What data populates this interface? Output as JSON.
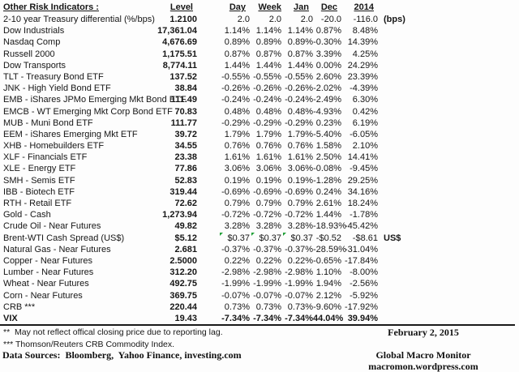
{
  "table": {
    "title": "Other Risk Indicators :",
    "columns": [
      "Level",
      "Day",
      "Week",
      "Jan",
      "Dec",
      "2014"
    ],
    "rows": [
      {
        "name": "2-10 year Treasury differential (%/bps)",
        "level": "1.2100",
        "day": "2.0",
        "week": "2.0",
        "jan": "2.0",
        "dec": "-20.0",
        "y2014": "-116.0",
        "suffix": "(bps)"
      },
      {
        "name": "Dow Industrials",
        "level": "17,361.04",
        "day": "1.14%",
        "week": "1.14%",
        "jan": "1.14%",
        "dec": "0.87%",
        "y2014": "8.48%"
      },
      {
        "name": "Nasdaq Comp",
        "level": "4,676.69",
        "day": "0.89%",
        "week": "0.89%",
        "jan": "0.89%",
        "dec": "-0.30%",
        "y2014": "14.39%"
      },
      {
        "name": "Russell 2000",
        "level": "1,175.51",
        "day": "0.87%",
        "week": "0.87%",
        "jan": "0.87%",
        "dec": "3.39%",
        "y2014": "4.25%"
      },
      {
        "name": "Dow Transports",
        "level": "8,774.11",
        "day": "1.44%",
        "week": "1.44%",
        "jan": "1.44%",
        "dec": "0.00%",
        "y2014": "24.29%"
      },
      {
        "name": "TLT - Treasury Bond ETF",
        "level": "137.52",
        "day": "-0.55%",
        "week": "-0.55%",
        "jan": "-0.55%",
        "dec": "2.60%",
        "y2014": "23.39%"
      },
      {
        "name": "JNK - High Yield Bond ETF",
        "level": "38.84",
        "day": "-0.26%",
        "week": "-0.26%",
        "jan": "-0.26%",
        "dec": "-2.02%",
        "y2014": "-4.39%"
      },
      {
        "name": "EMB - iShares JPMo Emerging Mkt Bond ETF",
        "level": "111.49",
        "day": "-0.24%",
        "week": "-0.24%",
        "jan": "-0.24%",
        "dec": "-2.49%",
        "y2014": "6.30%"
      },
      {
        "name": "EMCB - WT Emerging Mkt Corp Bond ETF",
        "level": "70.83",
        "day": "0.48%",
        "week": "0.48%",
        "jan": "0.48%",
        "dec": "-4.93%",
        "y2014": "0.42%"
      },
      {
        "name": "MUB - Muni Bond ETF",
        "level": "111.77",
        "day": "-0.29%",
        "week": "-0.29%",
        "jan": "-0.29%",
        "dec": "0.23%",
        "y2014": "6.19%"
      },
      {
        "name": "EEM - iShares Emerging Mkt ETF",
        "level": "39.72",
        "day": "1.79%",
        "week": "1.79%",
        "jan": "1.79%",
        "dec": "-5.40%",
        "y2014": "-6.05%"
      },
      {
        "name": "XHB - Homebuilders ETF",
        "level": "34.55",
        "day": "0.76%",
        "week": "0.76%",
        "jan": "0.76%",
        "dec": "1.58%",
        "y2014": "2.10%"
      },
      {
        "name": "XLF - Financials ETF",
        "level": "23.38",
        "day": "1.61%",
        "week": "1.61%",
        "jan": "1.61%",
        "dec": "2.50%",
        "y2014": "14.41%"
      },
      {
        "name": "XLE - Energy ETF",
        "level": "77.86",
        "day": "3.06%",
        "week": "3.06%",
        "jan": "3.06%",
        "dec": "-0.08%",
        "y2014": "-9.45%"
      },
      {
        "name": "SMH - Semis ETF",
        "level": "52.83",
        "day": "0.19%",
        "week": "0.19%",
        "jan": "0.19%",
        "dec": "-1.28%",
        "y2014": "29.25%"
      },
      {
        "name": "IBB - Biotech ETF",
        "level": "319.44",
        "day": "-0.69%",
        "week": "-0.69%",
        "jan": "-0.69%",
        "dec": "0.24%",
        "y2014": "34.16%"
      },
      {
        "name": "RTH - Retail ETF",
        "level": "72.62",
        "day": "0.79%",
        "week": "0.79%",
        "jan": "0.79%",
        "dec": "2.61%",
        "y2014": "18.24%"
      },
      {
        "name": "Gold - Cash",
        "level": "1,273.94",
        "day": "-0.72%",
        "week": "-0.72%",
        "jan": "-0.72%",
        "dec": "1.44%",
        "y2014": "-1.78%"
      },
      {
        "name": "Crude Oil - Near Futures",
        "level": "49.82",
        "day": "3.28%",
        "week": "3.28%",
        "jan": "3.28%",
        "dec": "-18.93%",
        "y2014": "-45.42%"
      },
      {
        "name": "Brent-WTI Cash Spread (US$)",
        "level": "$5.12",
        "day": "$0.37",
        "week": "$0.37",
        "jan": "$0.37",
        "dec": "-$0.52",
        "y2014": "-$8.61",
        "suffix": "US$",
        "flags": [
          "day",
          "week",
          "jan"
        ]
      },
      {
        "name": "Natural Gas - Near Futures",
        "level": "2.681",
        "day": "-0.37%",
        "week": "-0.37%",
        "jan": "-0.37%",
        "dec": "-28.59%",
        "y2014": "-31.04%"
      },
      {
        "name": "Copper - Near Futures",
        "level": "2.5000",
        "day": "0.22%",
        "week": "0.22%",
        "jan": "0.22%",
        "dec": "-0.65%",
        "y2014": "-17.84%"
      },
      {
        "name": "Lumber - Near Futures",
        "level": "312.20",
        "day": "-2.98%",
        "week": "-2.98%",
        "jan": "-2.98%",
        "dec": "1.10%",
        "y2014": "-8.00%"
      },
      {
        "name": "Wheat - Near Futures",
        "level": "492.75",
        "day": "-1.99%",
        "week": "-1.99%",
        "jan": "-1.99%",
        "dec": "1.94%",
        "y2014": "-2.56%"
      },
      {
        "name": "Corn - Near Futures",
        "level": "369.75",
        "day": "-0.07%",
        "week": "-0.07%",
        "jan": "-0.07%",
        "dec": "2.12%",
        "y2014": "-5.92%"
      },
      {
        "name": "CRB ***",
        "level": "220.44",
        "day": "0.73%",
        "week": "0.73%",
        "jan": "0.73%",
        "dec": "-9.60%",
        "y2014": "-17.92%"
      },
      {
        "name": "VIX",
        "level": "19.43",
        "day": "-7.34%",
        "week": "-7.34%",
        "jan": "-7.34%",
        "dec": "44.04%",
        "y2014": "39.94%",
        "bold": true
      }
    ]
  },
  "footer": {
    "note_double_star": "**  May not reflect offical closing price due to reporting lag.",
    "note_triple_star": "*** Thomson/Reuters CRB Commodity Index.",
    "data_sources": "Data Sources:  Bloomberg,  Yahoo Finance, investing.com",
    "date": "February 2, 2015",
    "brand": "Global Macro Monitor",
    "url": "macromon.wordpress.com"
  },
  "colors": {
    "flag_green": "#21a038",
    "text": "#161616"
  }
}
